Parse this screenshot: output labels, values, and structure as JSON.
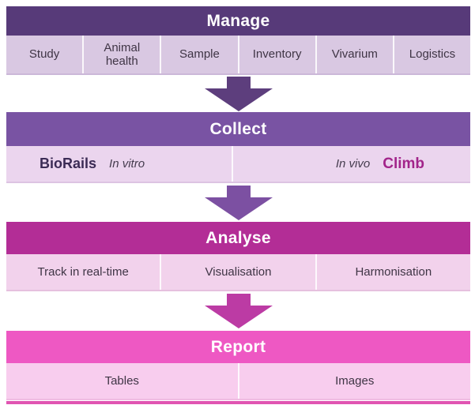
{
  "manage": {
    "title": "Manage",
    "items": [
      "Study",
      "Animal health",
      "Sample",
      "Inventory",
      "Vivarium",
      "Logistics"
    ]
  },
  "collect": {
    "title": "Collect",
    "in_vitro": {
      "brand": "BioRails",
      "label": "In vitro"
    },
    "in_vivo": {
      "label": "In vivo",
      "brand": "Climb"
    }
  },
  "analyse": {
    "title": "Analyse",
    "items": [
      "Track in real-time",
      "Visualisation",
      "Harmonisation"
    ]
  },
  "report": {
    "title": "Report",
    "items": [
      "Tables",
      "Images"
    ]
  },
  "colors": {
    "manage_header": "#573a79",
    "manage_row": "#d9c8e2",
    "collect_header": "#7953a3",
    "collect_row": "#ebd5ee",
    "analyse_header": "#b32d96",
    "analyse_row": "#f2d2ec",
    "report_header": "#ee58c3",
    "report_row": "#f8cdee",
    "arrow_manage_collect": "#5d3e7d",
    "arrow_collect_analyse": "#7c50a2",
    "arrow_analyse_report": "#bc3ba4",
    "climb_brand": "#a2248a",
    "biorails_brand": "#3b2b55",
    "footer_line": "#e054b2"
  }
}
